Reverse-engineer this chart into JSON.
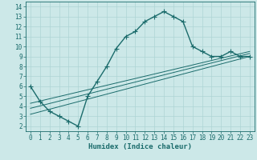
{
  "title": "",
  "xlabel": "Humidex (Indice chaleur)",
  "bg_color": "#cce8e8",
  "grid_color": "#aed4d4",
  "line_color": "#1a6b6b",
  "xlim": [
    -0.5,
    23.5
  ],
  "ylim": [
    1.5,
    14.5
  ],
  "xticks": [
    0,
    1,
    2,
    3,
    4,
    5,
    6,
    7,
    8,
    9,
    10,
    11,
    12,
    13,
    14,
    15,
    16,
    17,
    18,
    19,
    20,
    21,
    22,
    23
  ],
  "yticks": [
    2,
    3,
    4,
    5,
    6,
    7,
    8,
    9,
    10,
    11,
    12,
    13,
    14
  ],
  "main_x": [
    0,
    1,
    2,
    3,
    4,
    5,
    6,
    7,
    8,
    9,
    10,
    11,
    12,
    13,
    14,
    15,
    16,
    17,
    18,
    19,
    20,
    21,
    22,
    23
  ],
  "main_y": [
    6.0,
    4.5,
    3.5,
    3.0,
    2.5,
    2.0,
    5.0,
    6.5,
    8.0,
    9.8,
    11.0,
    11.5,
    12.5,
    13.0,
    13.5,
    13.0,
    12.5,
    10.0,
    9.5,
    9.0,
    9.0,
    9.5,
    9.0,
    9.0
  ],
  "ref_line1_x": [
    0,
    23
  ],
  "ref_line1_y": [
    3.2,
    9.0
  ],
  "ref_line2_x": [
    0,
    23
  ],
  "ref_line2_y": [
    3.8,
    9.3
  ],
  "ref_line3_x": [
    0,
    23
  ],
  "ref_line3_y": [
    4.3,
    9.5
  ],
  "marker": "+",
  "markersize": 4,
  "linewidth": 1.0,
  "tick_fontsize": 5.5,
  "label_fontsize": 6.5
}
